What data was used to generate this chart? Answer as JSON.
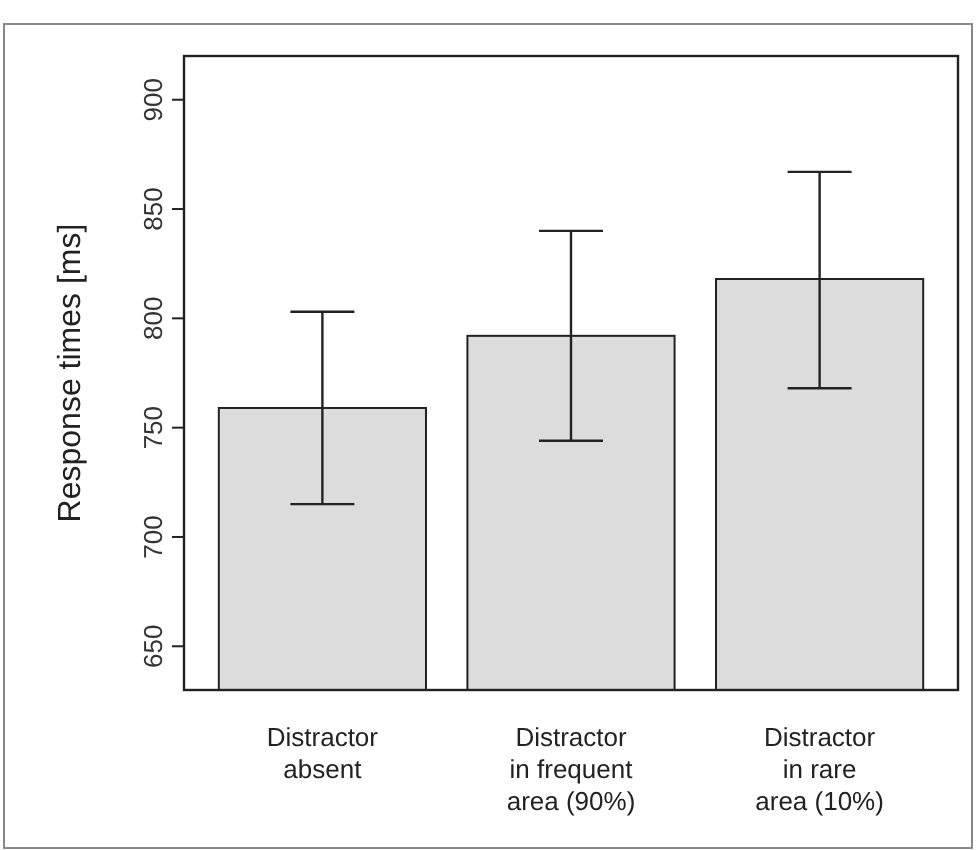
{
  "chart_data": {
    "type": "bar",
    "ylabel": "Response times [ms]",
    "categories": [
      "Distractor\nabsent",
      "Distractor\nin frequent\narea (90%)",
      "Distractor\nin rare\narea (10%)"
    ],
    "values": [
      759,
      792,
      818
    ],
    "errors": [
      [
        715,
        803
      ],
      [
        744,
        840
      ],
      [
        768,
        867
      ]
    ],
    "color": "#dcdcdc",
    "ylim": [
      630,
      920
    ],
    "yticks": [
      650,
      700,
      750,
      800,
      850,
      900
    ],
    "grid": false
  }
}
